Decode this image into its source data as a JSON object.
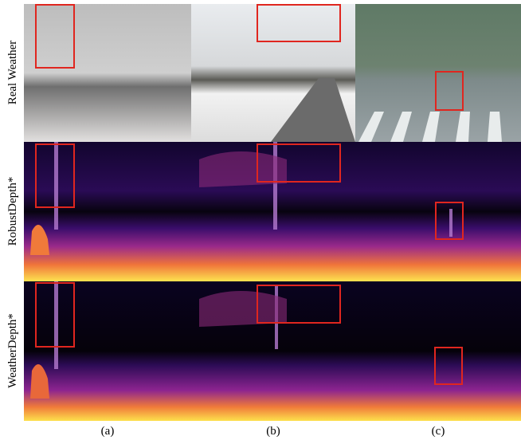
{
  "row_labels": [
    "Real Weather",
    "RobustDepth*",
    "WeatherDepth*"
  ],
  "column_labels": [
    "(a)",
    "(b)",
    "(c)"
  ]
}
